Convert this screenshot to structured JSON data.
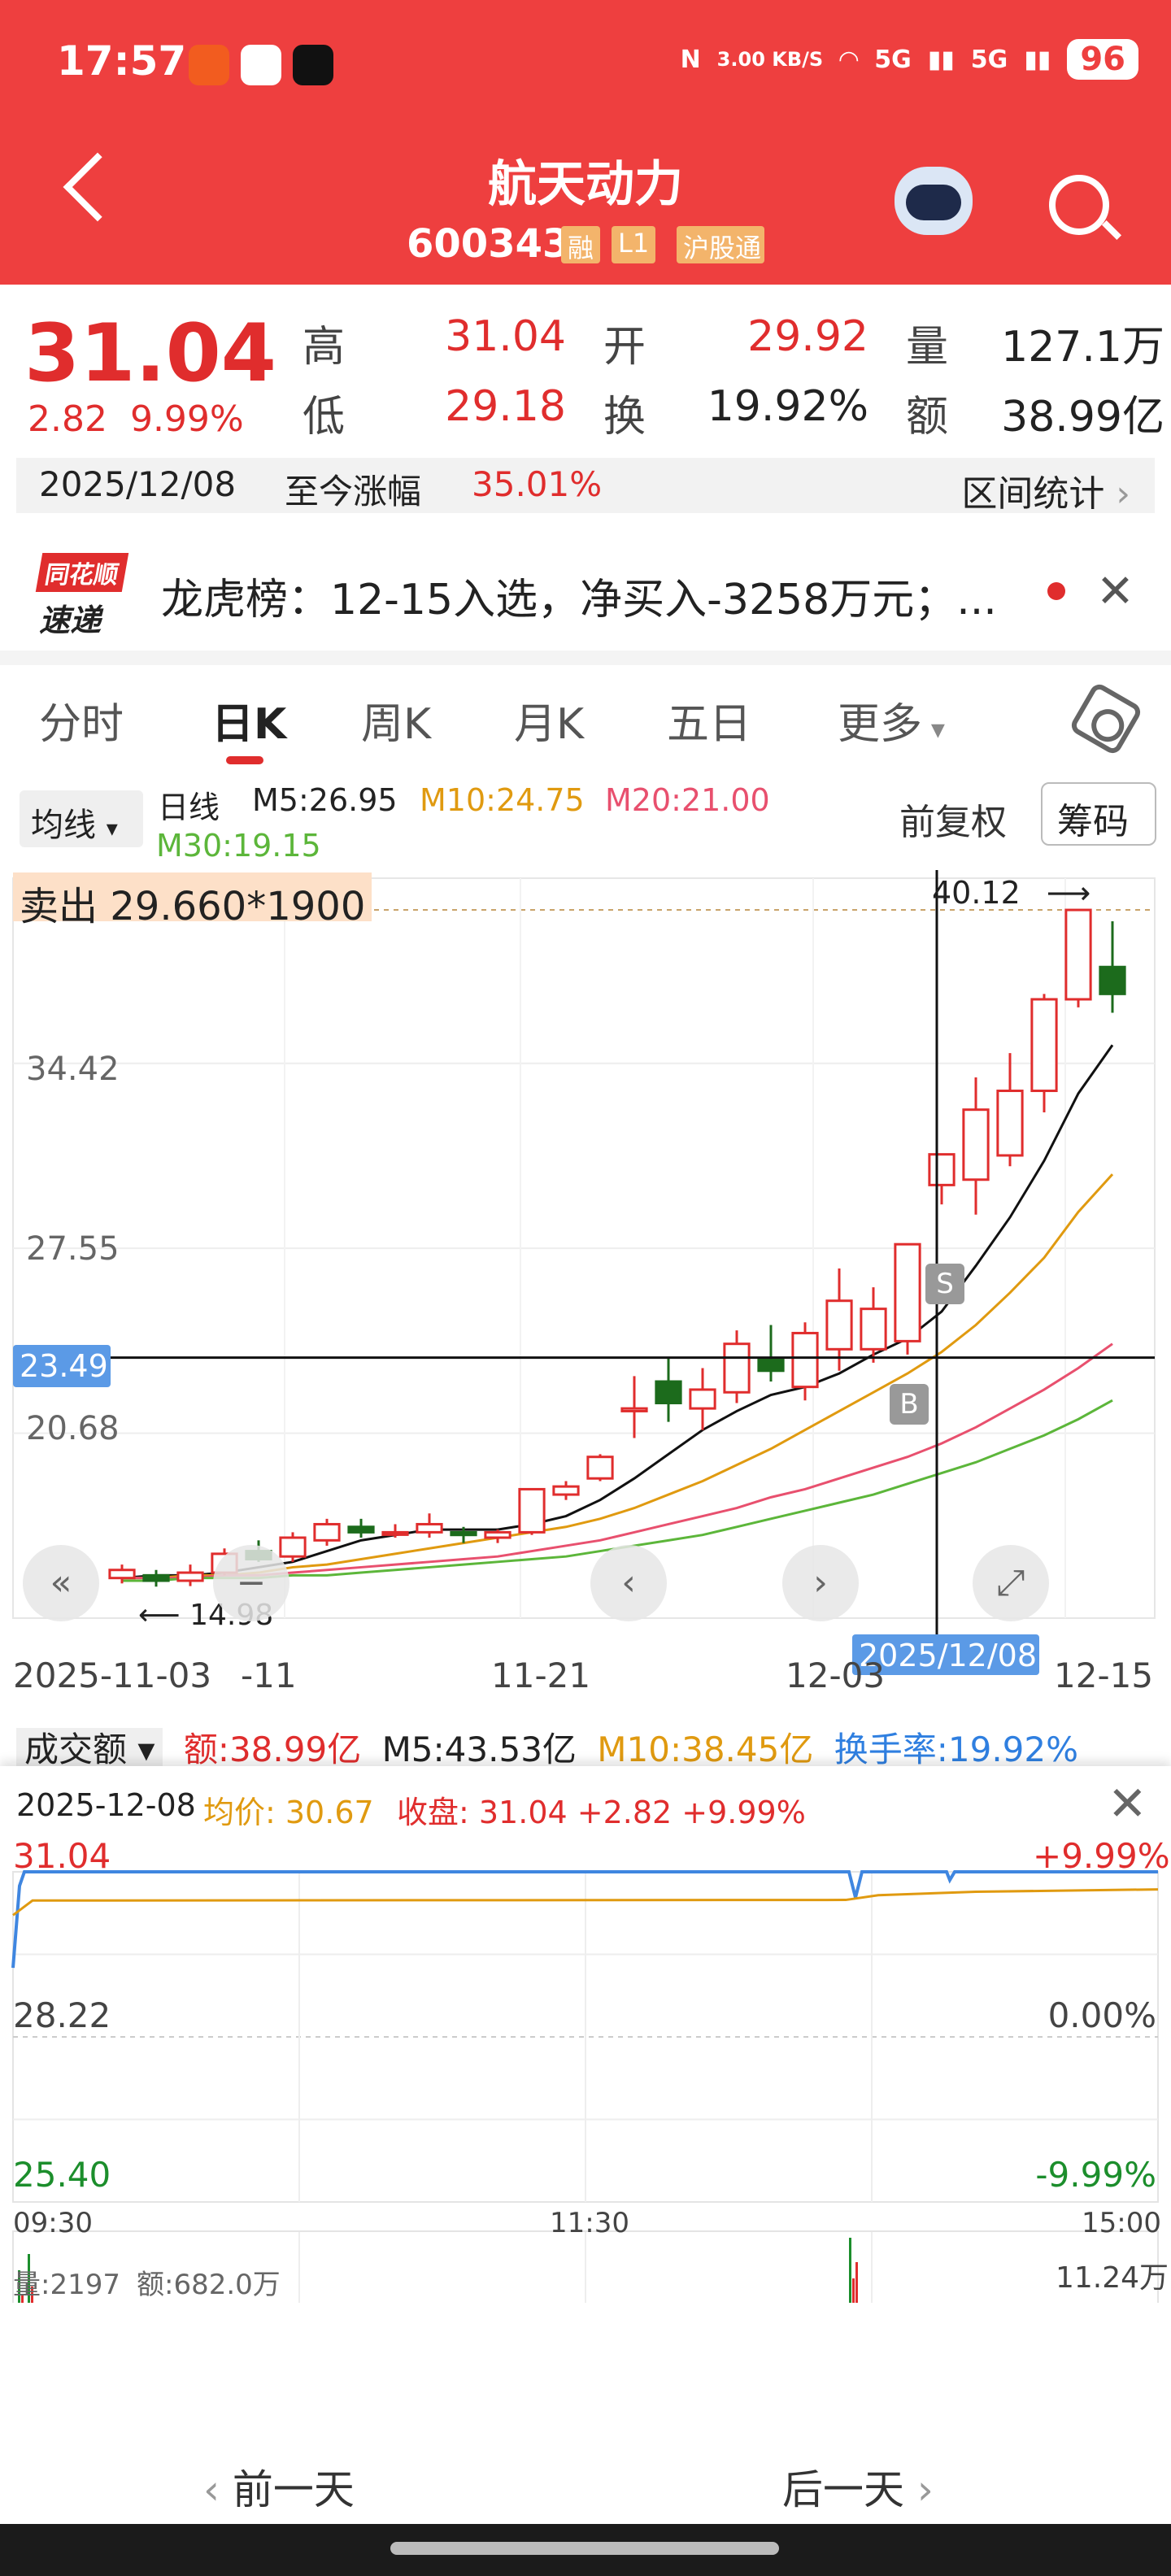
{
  "status": {
    "time": "17:57",
    "speed": "3.00 KB/S",
    "battery": "96",
    "net1": "5G",
    "net2": "5G"
  },
  "header": {
    "name": "航天动力",
    "code": "600343",
    "tags": [
      "融",
      "L1",
      "沪股通"
    ]
  },
  "quote": {
    "price": "31.04",
    "change": "2.82",
    "change_pct": "9.99%",
    "high_label": "高",
    "high": "31.04",
    "low_label": "低",
    "low": "29.18",
    "open_label": "开",
    "open": "29.92",
    "turnover_label": "换",
    "turnover": "19.92%",
    "volume_label": "量",
    "volume": "127.1万",
    "amount_label": "额",
    "amount": "38.99亿"
  },
  "range": {
    "date": "2025/12/08",
    "label": "至今涨幅",
    "value": "35.01%",
    "stats": "区间统计"
  },
  "news": {
    "logo_top": "同花顺",
    "logo_bottom": "速递",
    "text": "龙虎榜：12-15入选，净买入-3258万元；..."
  },
  "tabs": [
    "分时",
    "日K",
    "周K",
    "月K",
    "五日",
    "更多"
  ],
  "ma": {
    "button": "均线",
    "period": "日线",
    "m5": "M5:26.95",
    "m10": "M10:24.75",
    "m20": "M20:21.00",
    "m30": "M30:19.15",
    "fq": "前复权",
    "chip": "筹码"
  },
  "kline_overlay": {
    "sell": "卖出 29.660*1900",
    "high_mark": "40.12",
    "low_mark": "14.98",
    "crosshair_price": "23.49",
    "crosshair_date": "2025/12/08",
    "y_labels": [
      "34.42",
      "27.55",
      "20.68"
    ],
    "x_labels": [
      "2025-11-03",
      "-11",
      "11-21",
      "12-03",
      "12-15"
    ],
    "marker_s": "S",
    "marker_b": "B"
  },
  "volume_strip": {
    "label": "成交额",
    "amount": "额:38.99亿",
    "m5": "M5:43.53亿",
    "m10": "M10:38.45亿",
    "turnover": "换手率:19.92%"
  },
  "chart_data": {
    "type": "candlestick",
    "title": "",
    "x_labels": [
      "2025-11-03",
      "-11",
      "11-21",
      "12-03",
      "12-15"
    ],
    "y_labels": [
      34.42,
      27.55,
      20.68
    ],
    "ylim": [
      13.81,
      41.3
    ],
    "candles": [
      {
        "o": 15.3,
        "c": 15.6,
        "h": 15.8,
        "l": 15.1
      },
      {
        "o": 15.4,
        "c": 15.2,
        "h": 15.6,
        "l": 14.98
      },
      {
        "o": 15.2,
        "c": 15.5,
        "h": 15.8,
        "l": 15.0
      },
      {
        "o": 15.5,
        "c": 16.2,
        "h": 16.4,
        "l": 15.4
      },
      {
        "o": 16.3,
        "c": 16.0,
        "h": 16.7,
        "l": 15.9
      },
      {
        "o": 16.1,
        "c": 16.8,
        "h": 17.0,
        "l": 15.9
      },
      {
        "o": 16.7,
        "c": 17.3,
        "h": 17.5,
        "l": 16.5
      },
      {
        "o": 17.2,
        "c": 17.0,
        "h": 17.5,
        "l": 16.8
      },
      {
        "o": 17.0,
        "c": 17.0,
        "h": 17.3,
        "l": 16.8
      },
      {
        "o": 17.0,
        "c": 17.3,
        "h": 17.7,
        "l": 16.8
      },
      {
        "o": 17.0,
        "c": 16.9,
        "h": 17.2,
        "l": 16.6
      },
      {
        "o": 16.8,
        "c": 17.0,
        "h": 17.1,
        "l": 16.6
      },
      {
        "o": 17.0,
        "c": 18.6,
        "h": 18.6,
        "l": 16.9
      },
      {
        "o": 18.4,
        "c": 18.7,
        "h": 18.9,
        "l": 18.2
      },
      {
        "o": 19.0,
        "c": 19.8,
        "h": 19.9,
        "l": 18.9
      },
      {
        "o": 21.5,
        "c": 21.6,
        "h": 22.8,
        "l": 20.5
      },
      {
        "o": 22.6,
        "c": 21.8,
        "h": 23.5,
        "l": 21.1
      },
      {
        "o": 21.6,
        "c": 22.3,
        "h": 23.1,
        "l": 20.8
      },
      {
        "o": 22.2,
        "c": 24.0,
        "h": 24.5,
        "l": 21.8
      },
      {
        "o": 23.4,
        "c": 23.0,
        "h": 24.7,
        "l": 22.6
      },
      {
        "o": 22.4,
        "c": 24.4,
        "h": 24.8,
        "l": 21.9
      },
      {
        "o": 23.8,
        "c": 25.6,
        "h": 26.8,
        "l": 23.0
      },
      {
        "o": 23.8,
        "c": 25.3,
        "h": 26.1,
        "l": 23.3
      },
      {
        "o": 24.1,
        "c": 27.7,
        "h": 27.7,
        "l": 23.6
      },
      {
        "o": 29.9,
        "c": 31.04,
        "h": 31.04,
        "l": 29.18
      },
      {
        "o": 30.1,
        "c": 32.7,
        "h": 33.9,
        "l": 28.8
      },
      {
        "o": 31.0,
        "c": 33.4,
        "h": 34.8,
        "l": 30.6
      },
      {
        "o": 33.4,
        "c": 36.8,
        "h": 37.0,
        "l": 32.6
      },
      {
        "o": 36.8,
        "c": 40.12,
        "h": 40.12,
        "l": 36.5
      },
      {
        "o": 38.0,
        "c": 37.0,
        "h": 39.7,
        "l": 36.3
      }
    ],
    "ma": {
      "M5": [
        15.3,
        15.4,
        15.4,
        15.5,
        15.7,
        15.9,
        16.3,
        16.7,
        16.9,
        17.1,
        17.1,
        17.1,
        17.3,
        17.6,
        18.2,
        19.0,
        19.9,
        20.8,
        21.5,
        22.1,
        22.4,
        22.9,
        23.6,
        24.2,
        25.2,
        26.9,
        28.7,
        30.8,
        33.3,
        35.1
      ],
      "M10": [
        15.3,
        15.3,
        15.4,
        15.4,
        15.5,
        15.7,
        15.8,
        16.0,
        16.2,
        16.4,
        16.6,
        16.8,
        17.0,
        17.2,
        17.5,
        17.9,
        18.4,
        18.9,
        19.5,
        20.1,
        20.8,
        21.5,
        22.2,
        22.9,
        23.7,
        24.7,
        25.9,
        27.2,
        28.9,
        30.3
      ],
      "M20": [
        15.3,
        15.3,
        15.3,
        15.4,
        15.4,
        15.5,
        15.6,
        15.7,
        15.8,
        15.9,
        16.0,
        16.1,
        16.3,
        16.5,
        16.7,
        17.0,
        17.3,
        17.6,
        17.9,
        18.3,
        18.6,
        19.0,
        19.4,
        19.8,
        20.3,
        20.9,
        21.6,
        22.3,
        23.1,
        24.0
      ],
      "M30": [
        15.2,
        15.2,
        15.3,
        15.3,
        15.3,
        15.4,
        15.4,
        15.5,
        15.6,
        15.7,
        15.8,
        15.9,
        16.0,
        16.1,
        16.3,
        16.5,
        16.7,
        16.9,
        17.2,
        17.5,
        17.8,
        18.1,
        18.4,
        18.8,
        19.2,
        19.6,
        20.1,
        20.6,
        21.2,
        21.9
      ]
    }
  },
  "panel": {
    "date": "2025-12-08",
    "avg": "均价: 30.67",
    "close": "收盘: 31.04 +2.82 +9.99%",
    "y_left": [
      "31.04",
      "28.22",
      "25.40"
    ],
    "y_right": [
      "+9.99%",
      "0.00%",
      "-9.99%"
    ],
    "times": [
      "09:30",
      "11:30",
      "15:00"
    ],
    "vol_label": "量:2197",
    "vol_amount": "额:682.0万",
    "vol_max": "11.24万",
    "prev": "前一天",
    "next": "后一天"
  },
  "colors": {
    "up": "#e02d2d",
    "down": "#1c6b1c",
    "accent": "#ee3f3f",
    "ma5": "#111111",
    "ma10": "#e09a10",
    "ma20": "#e8506e",
    "ma30": "#5cb63a"
  }
}
